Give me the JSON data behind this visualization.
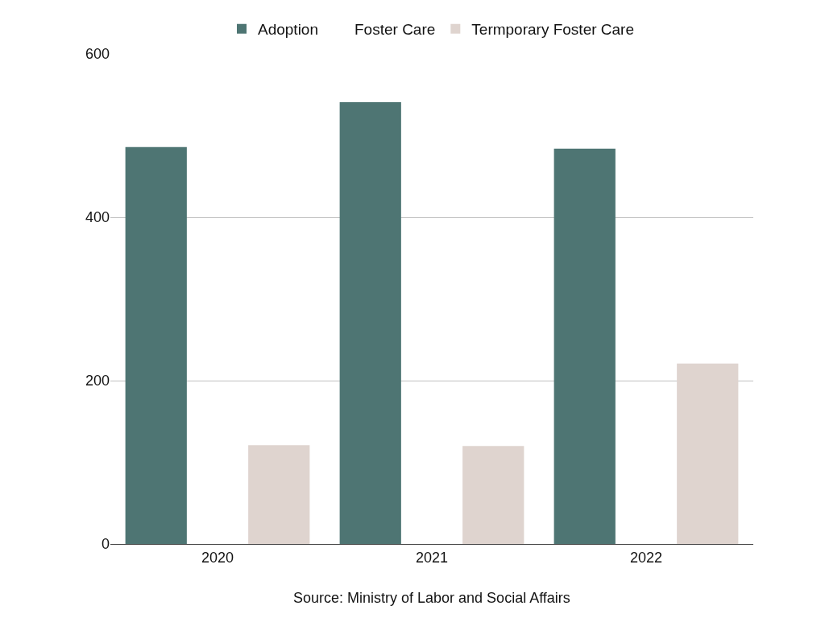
{
  "chart_data": {
    "type": "bar",
    "categories": [
      "2020",
      "2021",
      "2022"
    ],
    "series": [
      {
        "name": "Adoption",
        "color": "#4e7573",
        "values": [
          486,
          541,
          484
        ]
      },
      {
        "name": "Foster Care",
        "values": [
          null,
          null,
          null
        ]
      },
      {
        "name": "Termporary Foster Care",
        "color": "#dfd4cf",
        "values": [
          121,
          120,
          221
        ]
      }
    ],
    "ylim": [
      0,
      600
    ],
    "yticks": [
      0,
      200,
      400,
      600
    ],
    "grid": "y",
    "legend": "top",
    "annotations": [
      "Source: Ministry of Labor and Social Affairs"
    ]
  }
}
